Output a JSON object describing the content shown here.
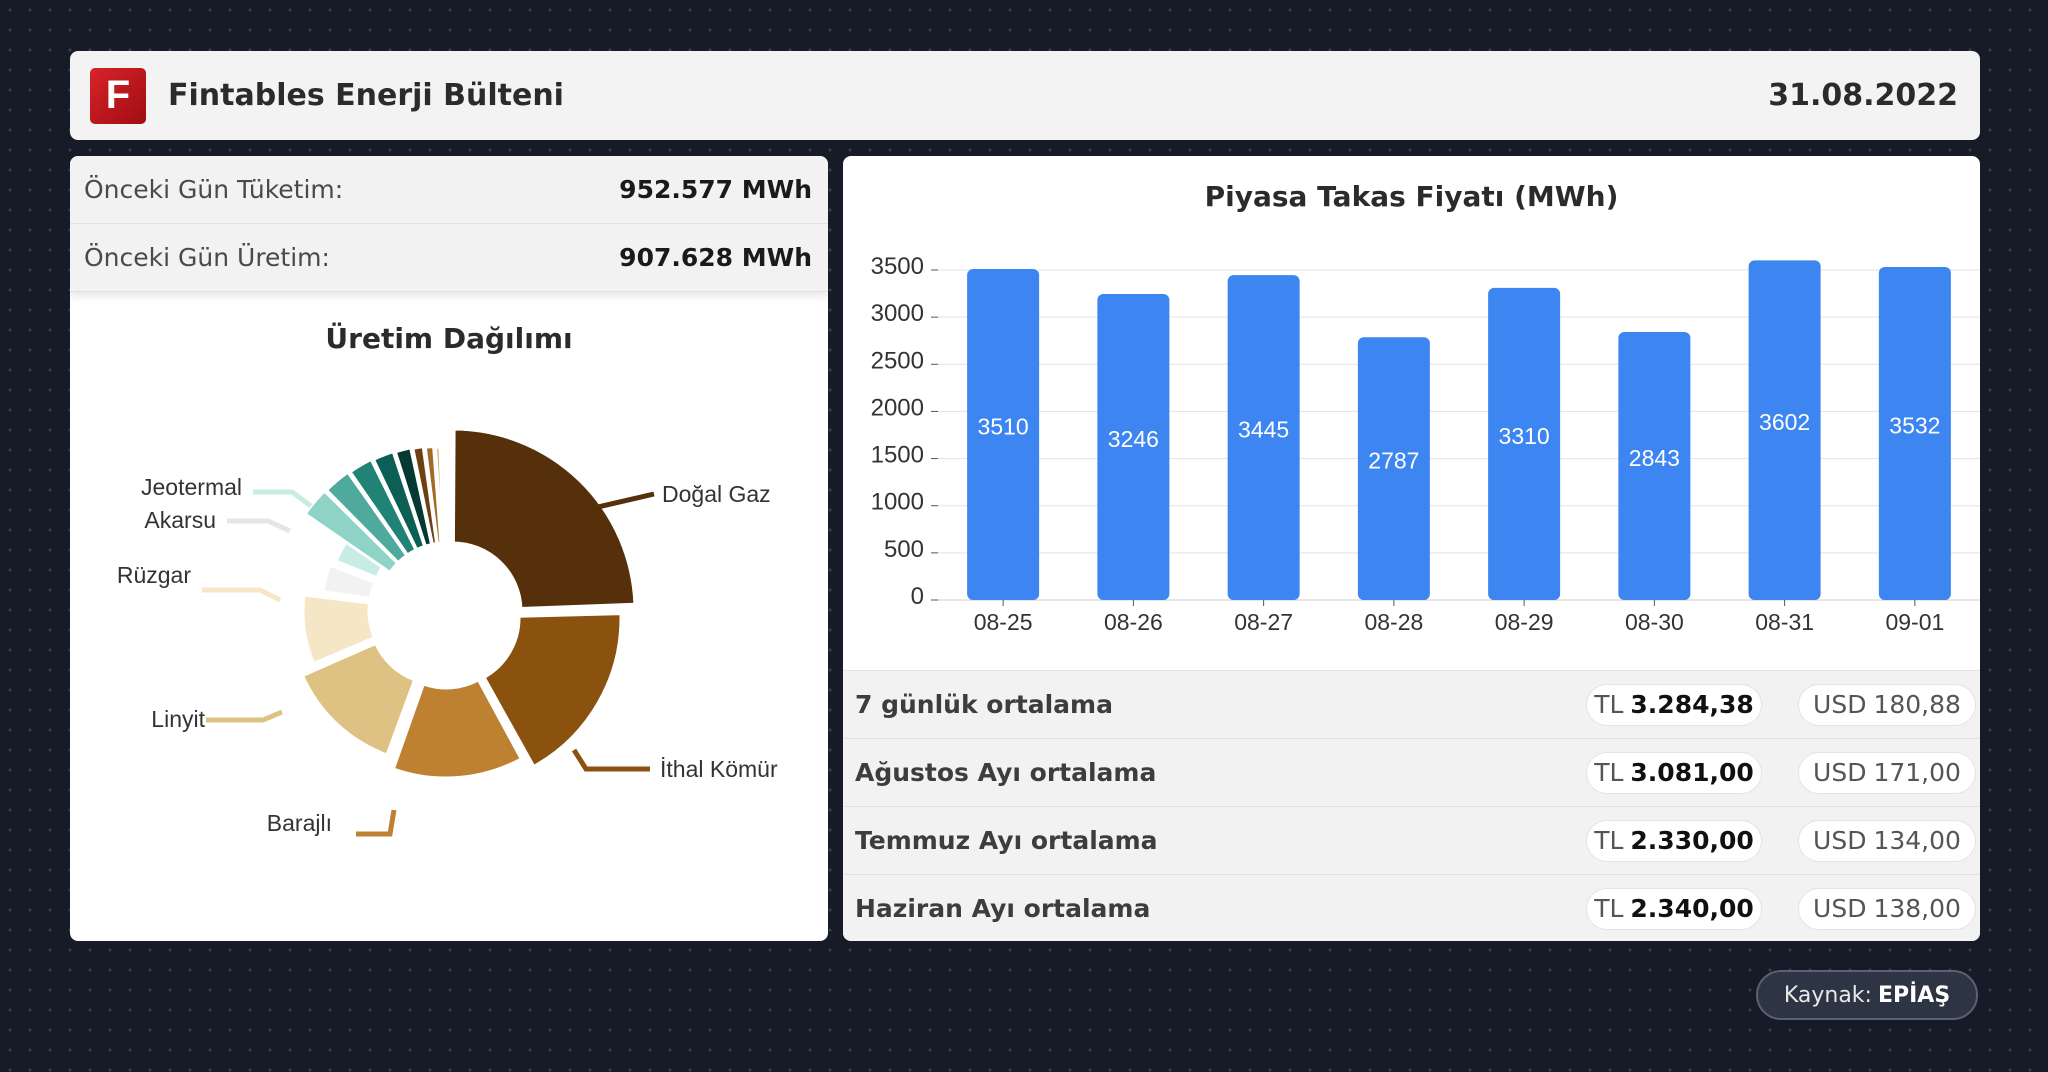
{
  "header": {
    "logo_letter": "F",
    "title": "Fintables Enerji Bülteni",
    "date": "31.08.2022"
  },
  "stats": [
    {
      "label": "Önceki Gün Tüketim:",
      "value": "952.577 MWh"
    },
    {
      "label": "Önceki Gün Üretim:",
      "value": "907.628 MWh"
    }
  ],
  "production": {
    "title": "Üretim Dağılımı"
  },
  "price": {
    "title": "Piyasa Takas Fiyatı (MWh)"
  },
  "averages": [
    {
      "label": "7 günlük ortalama",
      "tl": "3.284,38",
      "usd": "180,88"
    },
    {
      "label": "Ağustos Ayı ortalama",
      "tl": "3.081,00",
      "usd": "171,00"
    },
    {
      "label": "Temmuz Ayı ortalama",
      "tl": "2.330,00",
      "usd": "134,00"
    },
    {
      "label": "Haziran Ayı ortalama",
      "tl": "2.340,00",
      "usd": "138,00"
    }
  ],
  "currency": {
    "tl": "TL",
    "usd": "USD"
  },
  "source": {
    "label": "Kaynak:",
    "value": "EPİAŞ"
  },
  "chart_data": [
    {
      "type": "pie",
      "title": "Üretim Dağılımı",
      "donut": true,
      "slices": [
        {
          "name": "Doğal Gaz",
          "value": 24.5,
          "color": "#55300a",
          "labeled": true
        },
        {
          "name": "İthal Kömür",
          "value": 17.5,
          "color": "#8b520f",
          "labeled": true
        },
        {
          "name": "Barajlı",
          "value": 13.5,
          "color": "#bd8131",
          "labeled": true
        },
        {
          "name": "Linyit",
          "value": 13.0,
          "color": "#dec283",
          "labeled": true
        },
        {
          "name": "Rüzgar",
          "value": 8.5,
          "color": "#f5e6c6",
          "labeled": true
        },
        {
          "name": "Akarsu",
          "value": 4.0,
          "color": "#f2f2f2",
          "labeled": true
        },
        {
          "name": "Jeotermal",
          "value": 3.5,
          "color": "#c8ebe4",
          "labeled": true
        },
        {
          "name": "",
          "value": 3.0,
          "color": "#8fd3c7",
          "labeled": false
        },
        {
          "name": "",
          "value": 2.8,
          "color": "#4fa99c",
          "labeled": false
        },
        {
          "name": "",
          "value": 2.5,
          "color": "#218276",
          "labeled": false
        },
        {
          "name": "",
          "value": 2.2,
          "color": "#0b5f54",
          "labeled": false
        },
        {
          "name": "",
          "value": 1.7,
          "color": "#053a32",
          "labeled": false
        },
        {
          "name": "",
          "value": 1.2,
          "color": "#6e3f10",
          "labeled": false
        },
        {
          "name": "",
          "value": 1.0,
          "color": "#a36a24",
          "labeled": false
        },
        {
          "name": "",
          "value": 0.6,
          "color": "#c9a062",
          "labeled": false
        },
        {
          "name": "",
          "value": 0.5,
          "color": "#e8d2a6",
          "labeled": false
        }
      ]
    },
    {
      "type": "bar",
      "title": "Piyasa Takas Fiyatı (MWh)",
      "categories": [
        "08-25",
        "08-26",
        "08-27",
        "08-28",
        "08-29",
        "08-30",
        "08-31",
        "09-01"
      ],
      "values": [
        3510,
        3246,
        3445,
        2787,
        3310,
        2843,
        3602,
        3532
      ],
      "ylim": [
        0,
        3500
      ],
      "yticks": [
        0,
        500,
        1000,
        1500,
        2000,
        2500,
        3000,
        3500
      ],
      "color": "#3d85f0",
      "grid": true,
      "data_labels": true
    }
  ]
}
